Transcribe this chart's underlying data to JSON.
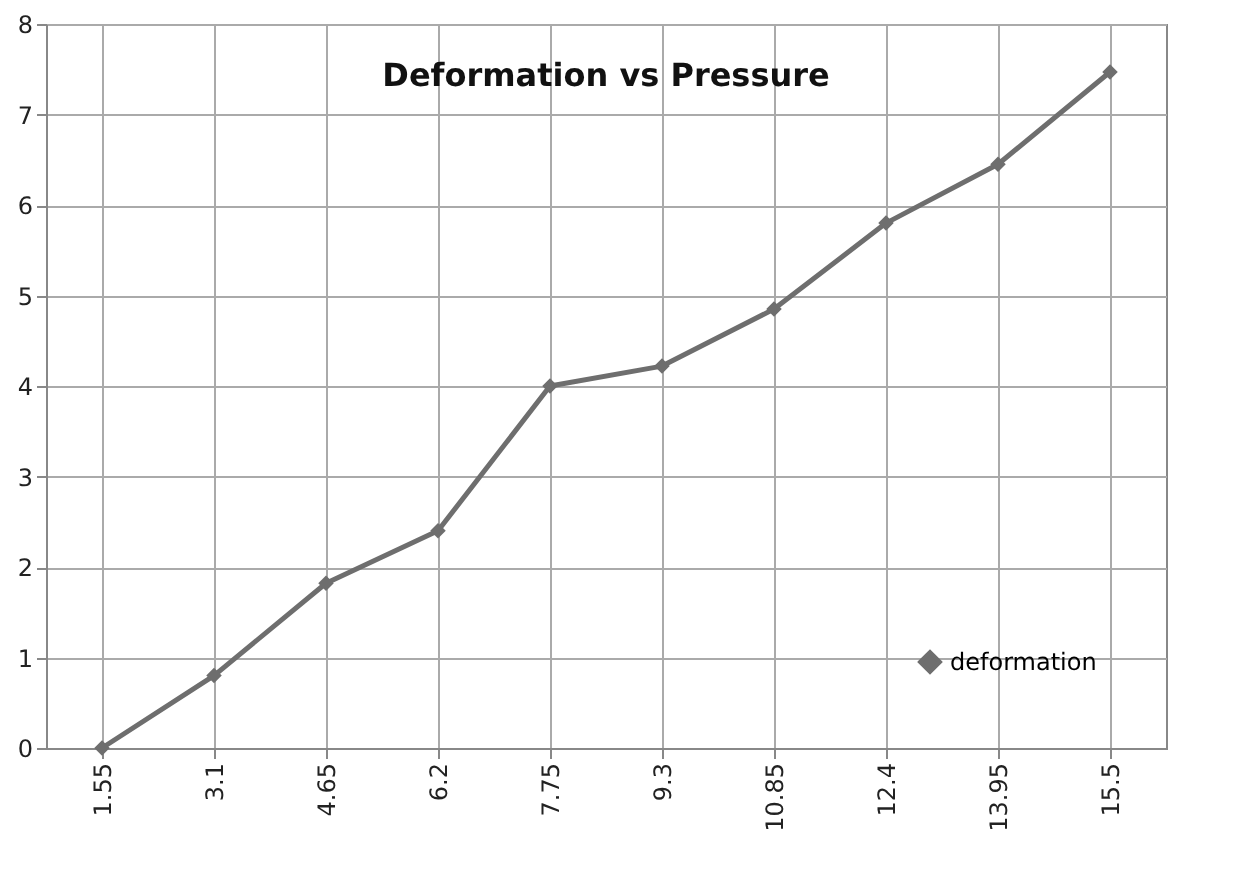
{
  "chart_data": {
    "type": "line",
    "title": "Deformation vs Pressure",
    "categories": [
      "1.55",
      "3.1",
      "4.65",
      "6.2",
      "7.75",
      "9.3",
      "10.85",
      "12.4",
      "13.95",
      "15.5"
    ],
    "series": [
      {
        "name": "deformation",
        "color": "#6e6e6e",
        "values": [
          0,
          0.8,
          1.82,
          2.4,
          4.0,
          4.22,
          4.85,
          5.8,
          6.45,
          7.47
        ]
      }
    ],
    "ylim": [
      0,
      8
    ],
    "yticks": [
      0,
      1,
      2,
      3,
      4,
      5,
      6,
      7,
      8
    ],
    "grid": true,
    "legend": "bottom right",
    "marker": "diamond",
    "line_style": "solid"
  }
}
